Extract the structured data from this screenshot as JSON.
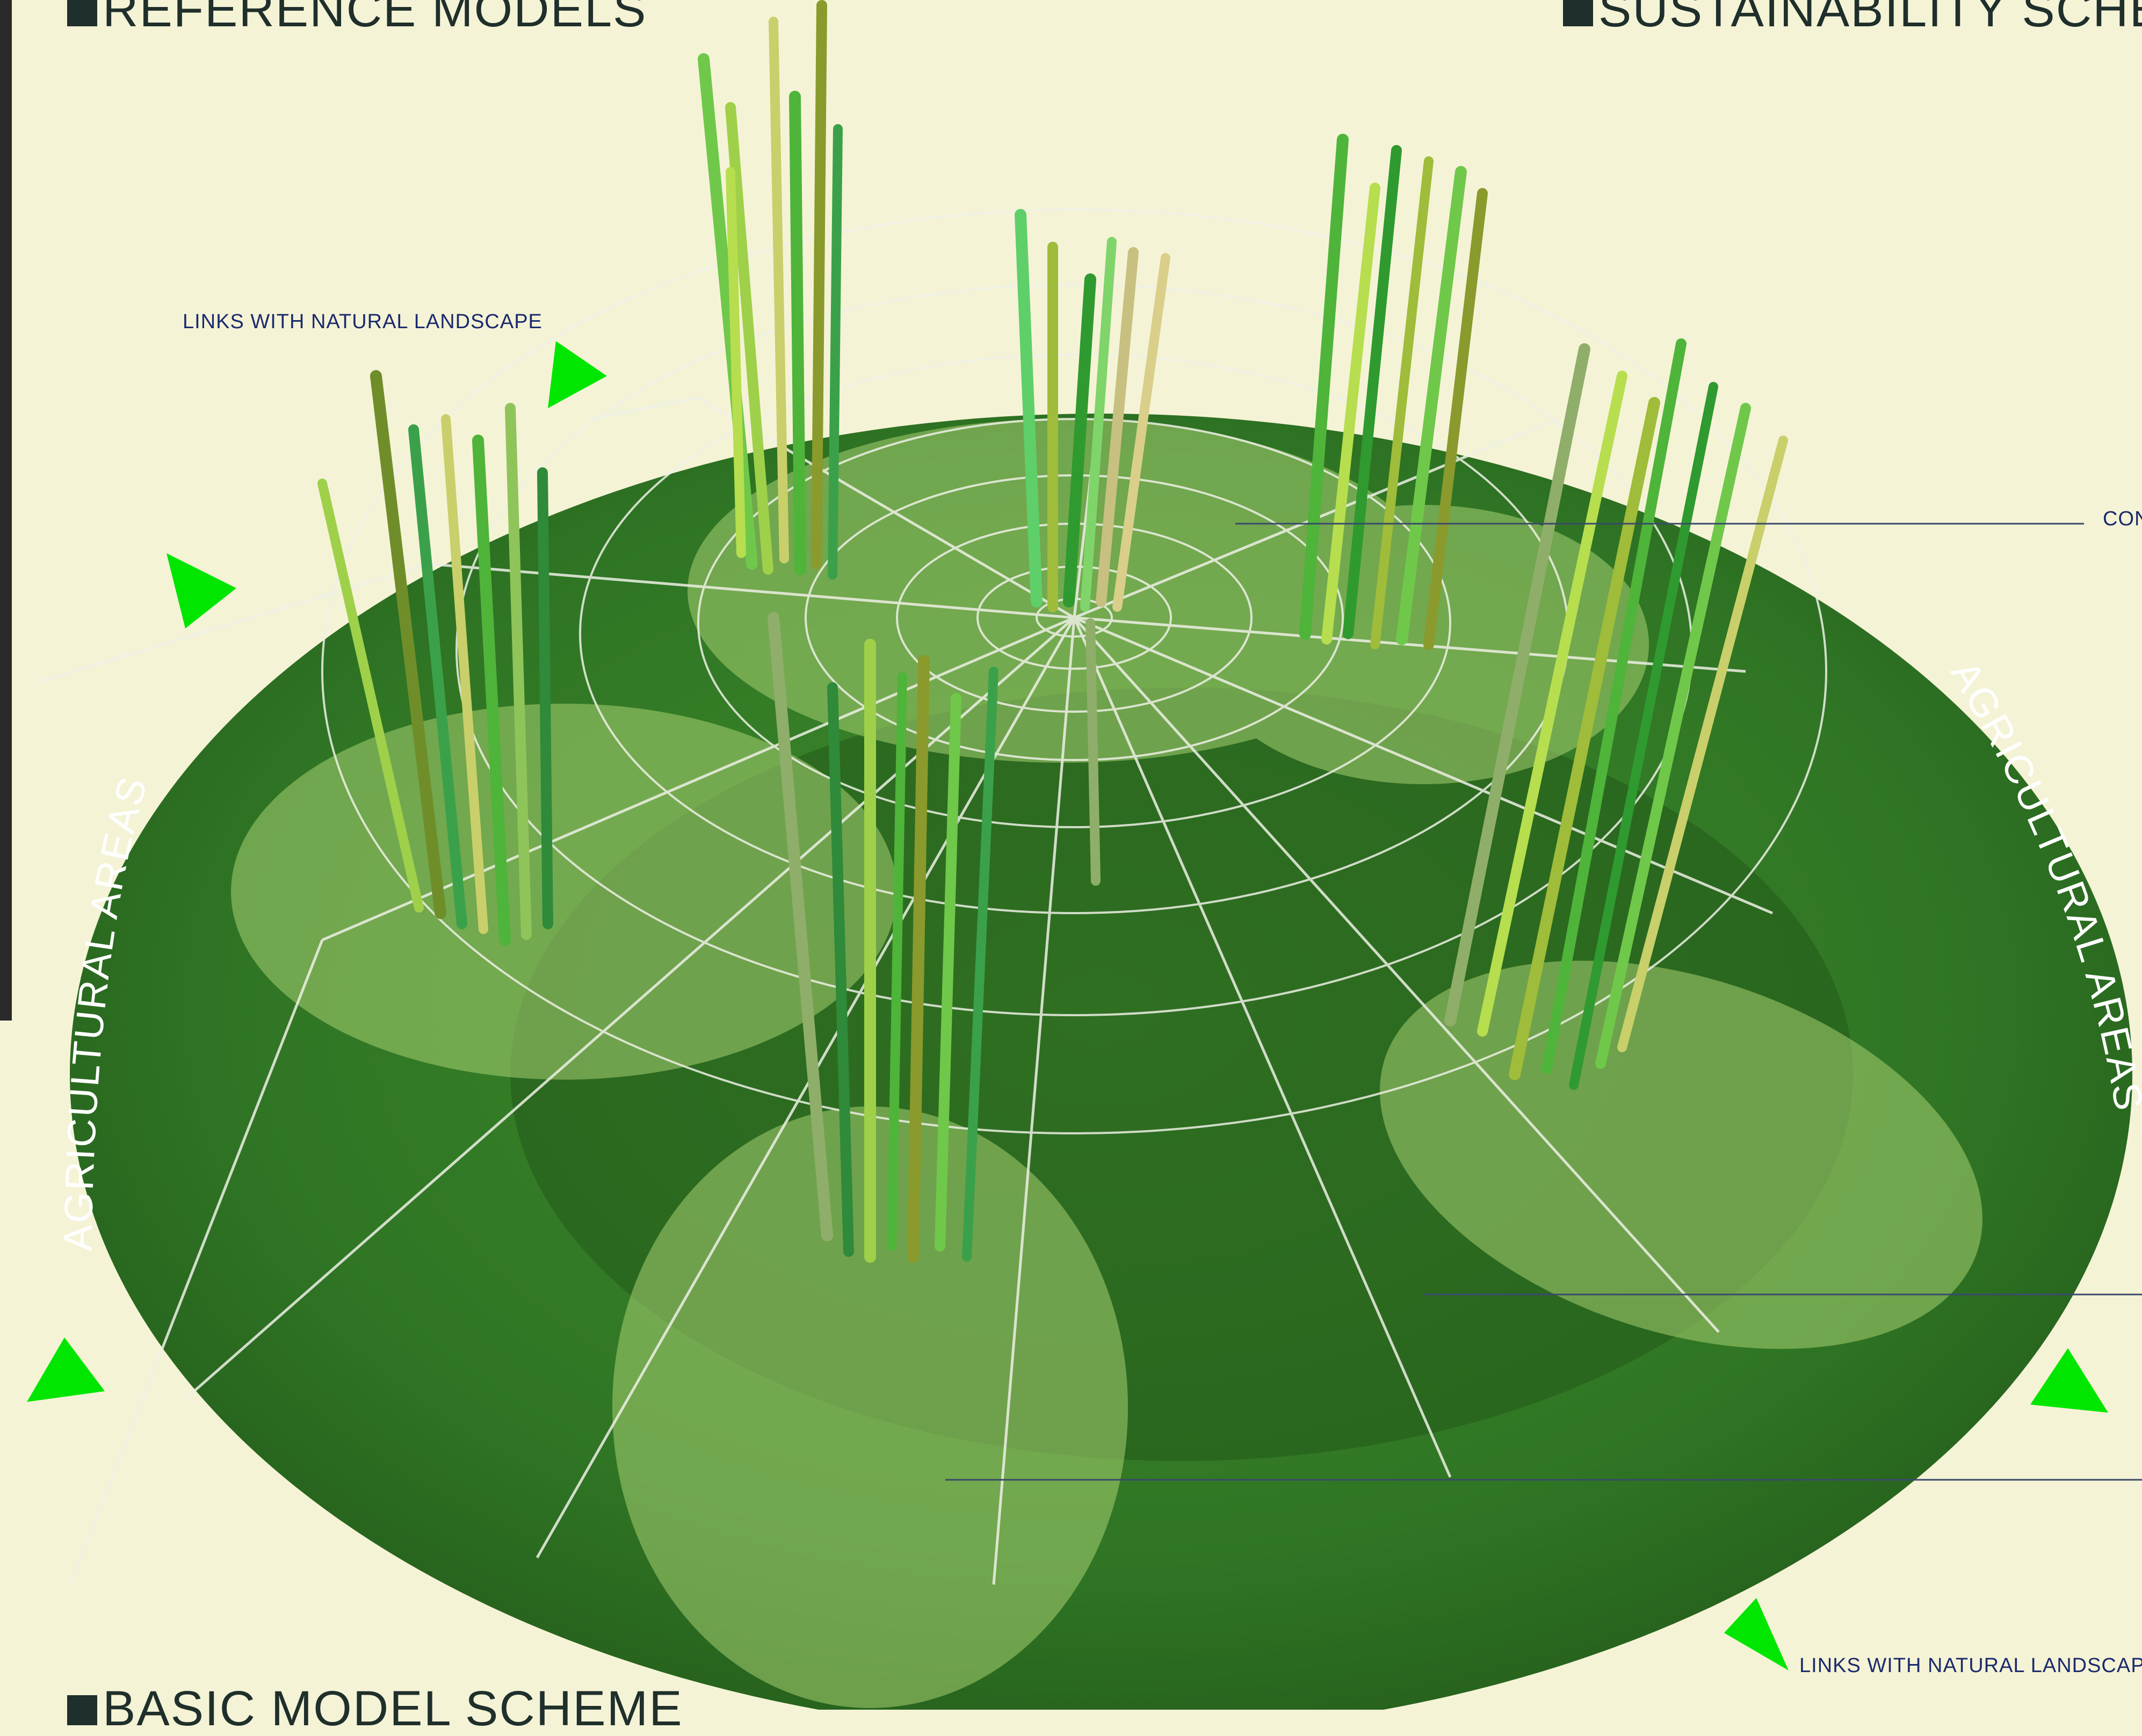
{
  "headings": {
    "reference_models": "REFERENCE MODELS",
    "sustainability_scheme": "SUSTAINABILITY SCHEME",
    "basic_model_scheme": "BASIC MODEL SCHEME"
  },
  "annotations": {
    "links_top_left": "LINKS WITH NATURAL LANDSCAPE",
    "links_bottom_right": "LINKS WITH NATURAL LANDSCAPE",
    "callout_right_truncated": "CON",
    "agricultural_left": "AGRICULTURAL AREAS",
    "agricultural_right": "AGRICULTURAL AREAS"
  },
  "icons": {
    "arrow": "green-triangle-arrow"
  },
  "colors": {
    "background": "#f5f3d6",
    "disc_dark": "#2f6b23",
    "disc_mid": "#3f8a2b",
    "lobe_light": "#9cc46a",
    "web": "#e8ece0",
    "arrow_green": "#00e600",
    "heading_text": "#1f2f2b",
    "note_text": "#1a2a6c"
  }
}
